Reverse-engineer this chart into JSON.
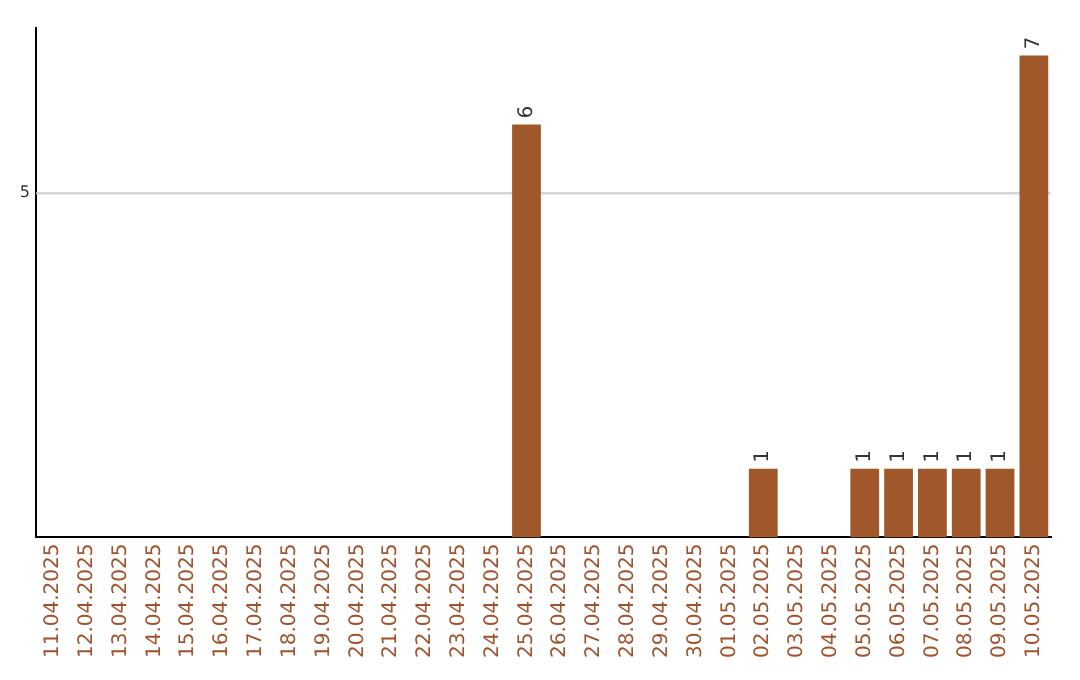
{
  "chart_data": {
    "type": "bar",
    "categories": [
      "11.04.2025",
      "12.04.2025",
      "13.04.2025",
      "14.04.2025",
      "15.04.2025",
      "16.04.2025",
      "17.04.2025",
      "18.04.2025",
      "19.04.2025",
      "20.04.2025",
      "21.04.2025",
      "22.04.2025",
      "23.04.2025",
      "24.04.2025",
      "25.04.2025",
      "26.04.2025",
      "27.04.2025",
      "28.04.2025",
      "29.04.2025",
      "30.04.2025",
      "01.05.2025",
      "02.05.2025",
      "03.05.2025",
      "04.05.2025",
      "05.05.2025",
      "06.05.2025",
      "07.05.2025",
      "08.05.2025",
      "09.05.2025",
      "10.05.2025"
    ],
    "values": [
      null,
      null,
      null,
      null,
      null,
      null,
      null,
      null,
      null,
      null,
      null,
      null,
      null,
      null,
      6,
      null,
      null,
      null,
      null,
      null,
      null,
      1,
      null,
      null,
      1,
      1,
      1,
      1,
      1,
      7
    ],
    "data_labels": true,
    "color": "#a0582a",
    "ylim": [
      0,
      7.4
    ],
    "ref_lines": [
      {
        "axis": "y",
        "value": 5,
        "label": "5",
        "color": "#cccccc"
      }
    ],
    "legend": false
  }
}
